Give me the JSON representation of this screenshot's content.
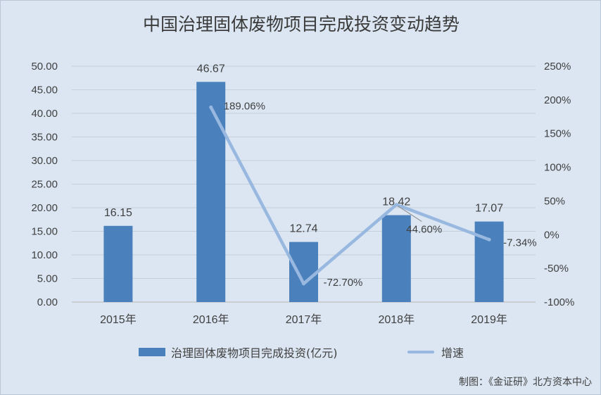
{
  "title": "中国治理固体废物项目完成投资变动趋势",
  "source": "制图：《金证研》北方资本中心",
  "chart_data": {
    "type": "bar",
    "categories": [
      "2015年",
      "2016年",
      "2017年",
      "2018年",
      "2019年"
    ],
    "series": [
      {
        "name": "治理固体废物项目完成投资(亿元)",
        "type": "bar",
        "axis": "left",
        "color": "#4a80bb",
        "values": [
          16.15,
          46.67,
          12.74,
          18.42,
          17.07
        ],
        "labels": [
          "16.15",
          "46.67",
          "12.74",
          "18.42",
          "17.07"
        ]
      },
      {
        "name": "增速",
        "type": "line",
        "axis": "right",
        "color": "#98b8e0",
        "values": [
          null,
          189.06,
          -72.7,
          44.6,
          -7.34
        ],
        "labels": [
          "",
          "189.06%",
          "-72.70%",
          "44.60%",
          "-7.34%"
        ]
      }
    ],
    "y_left": {
      "ylim": [
        0,
        50
      ],
      "ticks": [
        "0.00",
        "5.00",
        "10.00",
        "15.00",
        "20.00",
        "25.00",
        "30.00",
        "35.00",
        "40.00",
        "45.00",
        "50.00"
      ]
    },
    "y_right": {
      "ylim": [
        -100,
        250
      ],
      "ticks": [
        "-100%",
        "-50%",
        "0%",
        "50%",
        "100%",
        "150%",
        "200%",
        "250%"
      ]
    },
    "grid": true,
    "legend": "bottom"
  }
}
